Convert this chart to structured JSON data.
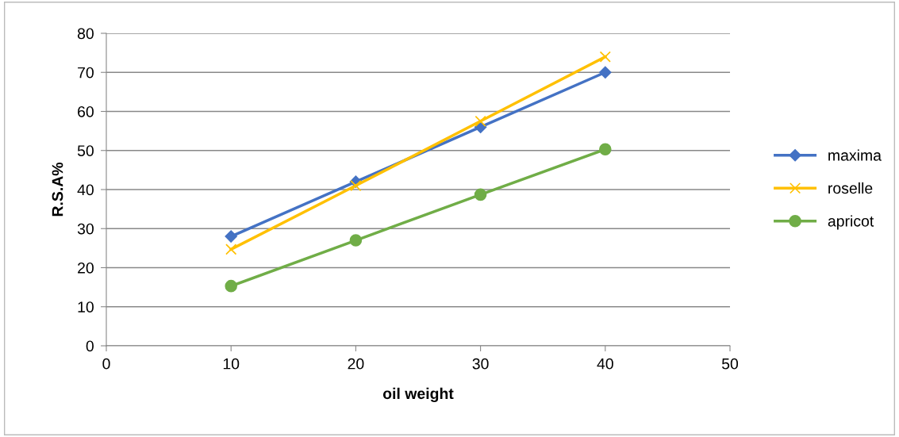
{
  "chart_data": {
    "type": "line",
    "xlabel": "oil weight",
    "ylabel": "R.S.A%",
    "xlim": [
      0,
      50
    ],
    "xticks": [
      0,
      10,
      20,
      30,
      40,
      50
    ],
    "ylim": [
      0,
      80
    ],
    "yticks": [
      0,
      10,
      20,
      30,
      40,
      50,
      60,
      70,
      80
    ],
    "x": [
      10,
      20,
      30,
      40
    ],
    "series": [
      {
        "name": "maxima",
        "color": "#4472c4",
        "marker": "diamond",
        "values": [
          28,
          42,
          56,
          70
        ]
      },
      {
        "name": "roselle",
        "color": "#ffc000",
        "marker": "cross",
        "values": [
          24.7,
          41,
          57.5,
          74
        ]
      },
      {
        "name": "apricot",
        "color": "#70ad47",
        "marker": "circle",
        "values": [
          15.3,
          27,
          38.7,
          50.3
        ]
      }
    ],
    "grid": "y",
    "legend": "right",
    "line_style": "solid"
  }
}
